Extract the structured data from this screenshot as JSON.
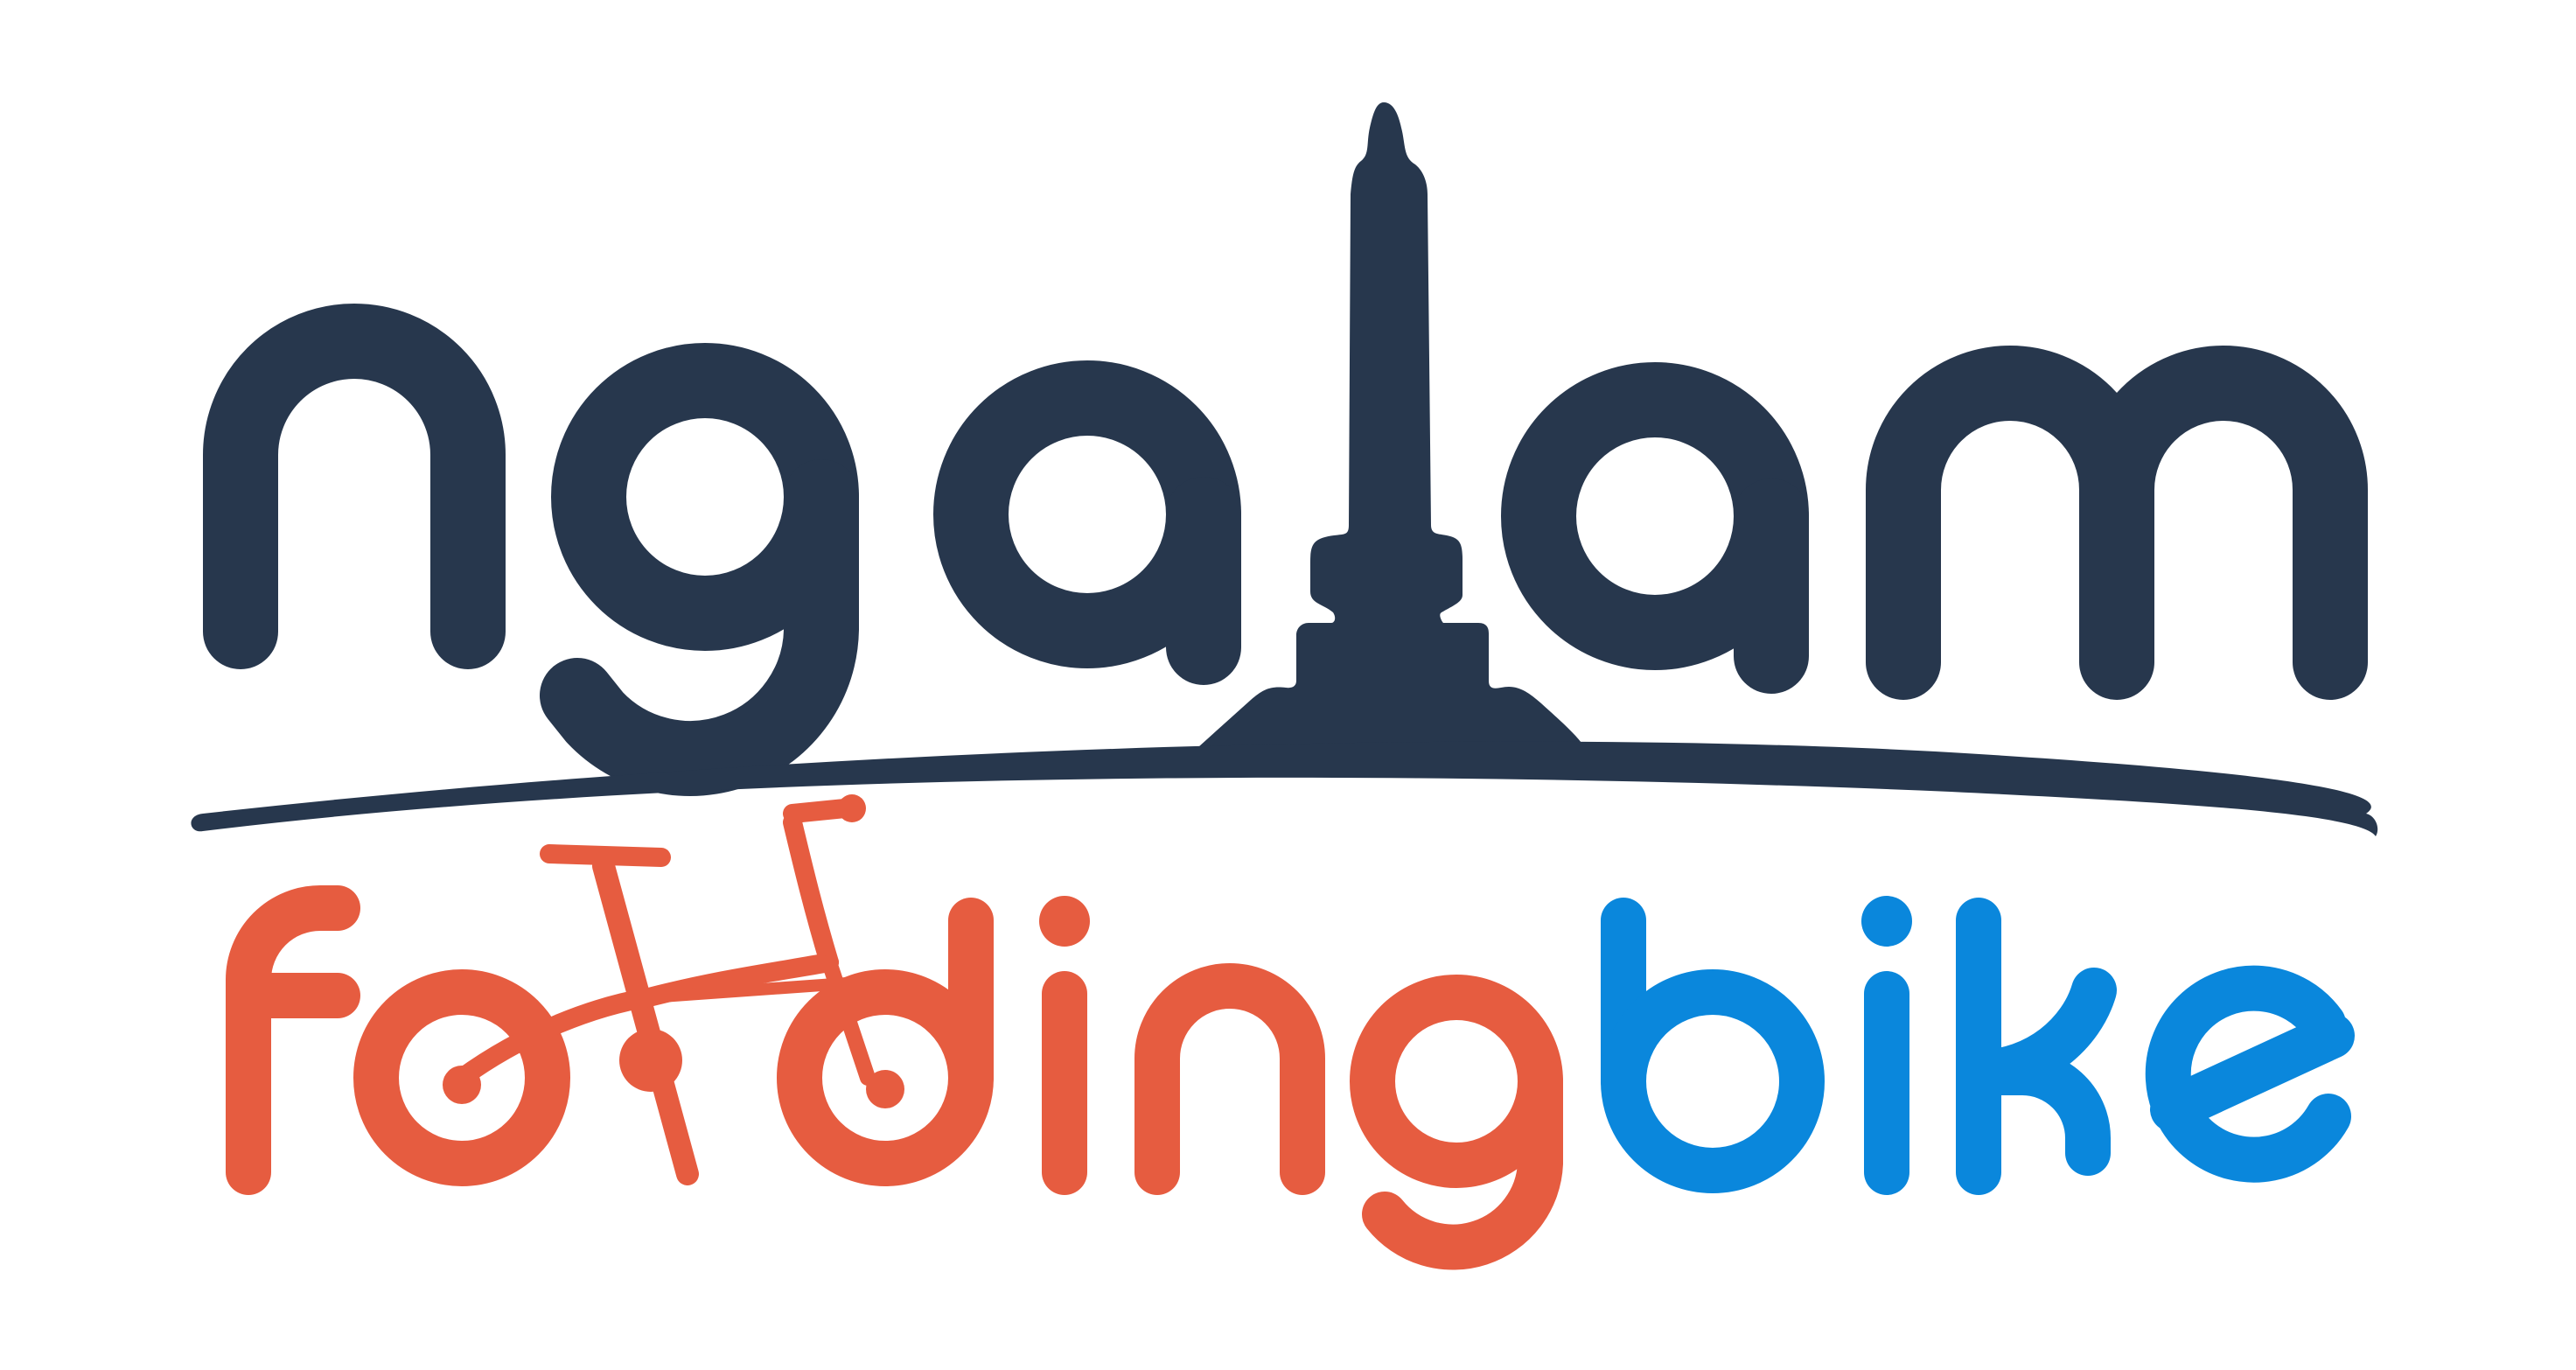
{
  "logo": {
    "wordmark_top": "ngalam",
    "wordmark_bottom_part1": "folding",
    "wordmark_bottom_part2": "bike"
  },
  "colors": {
    "navy": "#27374d",
    "orange": "#e65c40",
    "blue": "#0a87dc",
    "background": "#ffffff"
  },
  "icons": {
    "monument": "tugu-monument-icon",
    "bicycle": "folding-bicycle-icon",
    "horizon": "horizon-swoosh"
  }
}
